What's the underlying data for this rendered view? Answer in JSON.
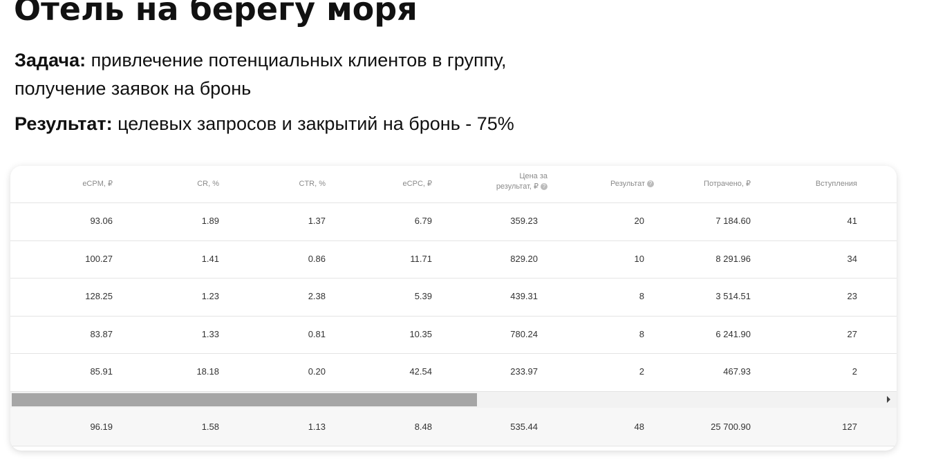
{
  "title": "Отель на берегу моря",
  "task": {
    "label": "Задача:",
    "lines": [
      "привлечение потенциальных клиентов в группу,",
      "получение заявок на бронь"
    ]
  },
  "result": {
    "label": "Результат:",
    "text": "целевых запросов и закрытий на бронь - 75%"
  },
  "table": {
    "headers": [
      "eCPM, ₽",
      "CR, %",
      "CTR, %",
      "eCPC, ₽",
      "Цена за результат, ₽",
      "Результат",
      "Потрачено, ₽",
      "Вступления"
    ],
    "rows": [
      [
        "93.06",
        "1.89",
        "1.37",
        "6.79",
        "359.23",
        "20",
        "7 184.60",
        "41"
      ],
      [
        "100.27",
        "1.41",
        "0.86",
        "11.71",
        "829.20",
        "10",
        "8 291.96",
        "34"
      ],
      [
        "128.25",
        "1.23",
        "2.38",
        "5.39",
        "439.31",
        "8",
        "3 514.51",
        "23"
      ],
      [
        "83.87",
        "1.33",
        "0.81",
        "10.35",
        "780.24",
        "8",
        "6 241.90",
        "27"
      ],
      [
        "85.91",
        "18.18",
        "0.20",
        "42.54",
        "233.97",
        "2",
        "467.93",
        "2"
      ]
    ],
    "total": [
      "96.19",
      "1.58",
      "1.13",
      "8.48",
      "535.44",
      "48",
      "25 700.90",
      "127"
    ]
  }
}
